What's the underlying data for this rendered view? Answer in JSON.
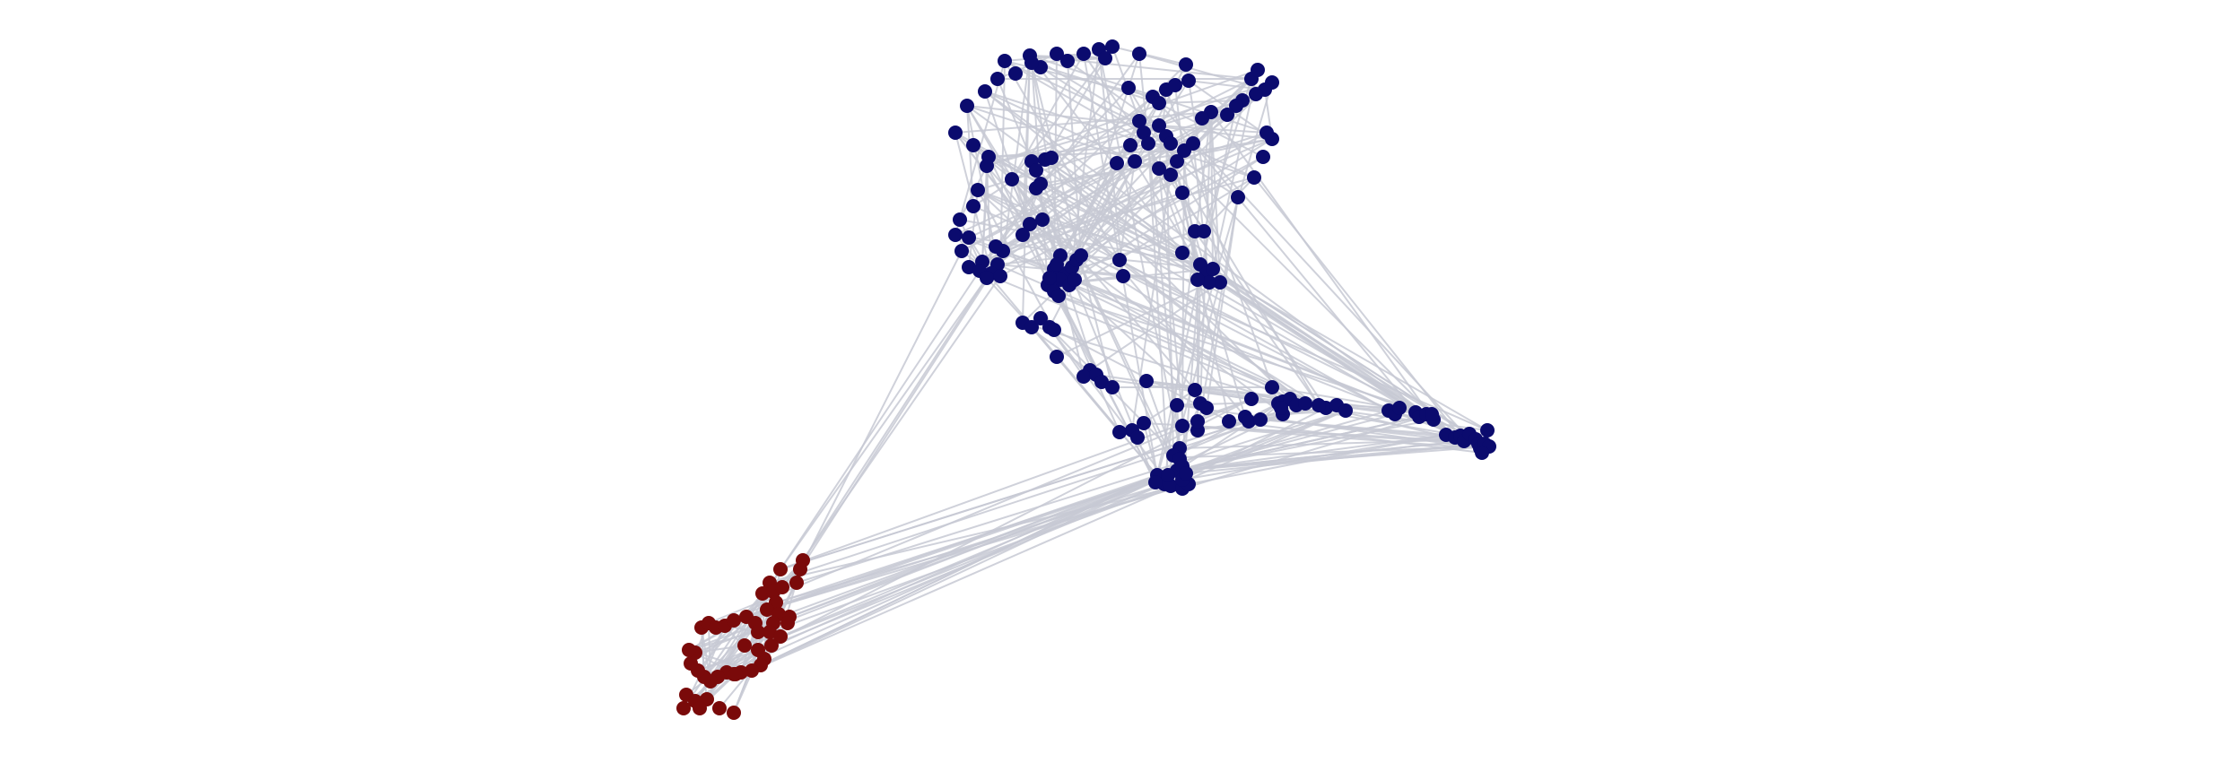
{
  "diagram": {
    "type": "network-graph",
    "title": "",
    "colors": {
      "background": "#ffffff",
      "edge": "#c7c9d4",
      "cluster_blue": "#0b0b6e",
      "cluster_red": "#7a0a0a"
    },
    "clusters": [
      {
        "name": "",
        "color_key": "cluster_blue",
        "node_count": 190
      },
      {
        "name": "",
        "color_key": "cluster_red",
        "node_count": 46
      }
    ],
    "legend": "none",
    "axes": "none"
  }
}
